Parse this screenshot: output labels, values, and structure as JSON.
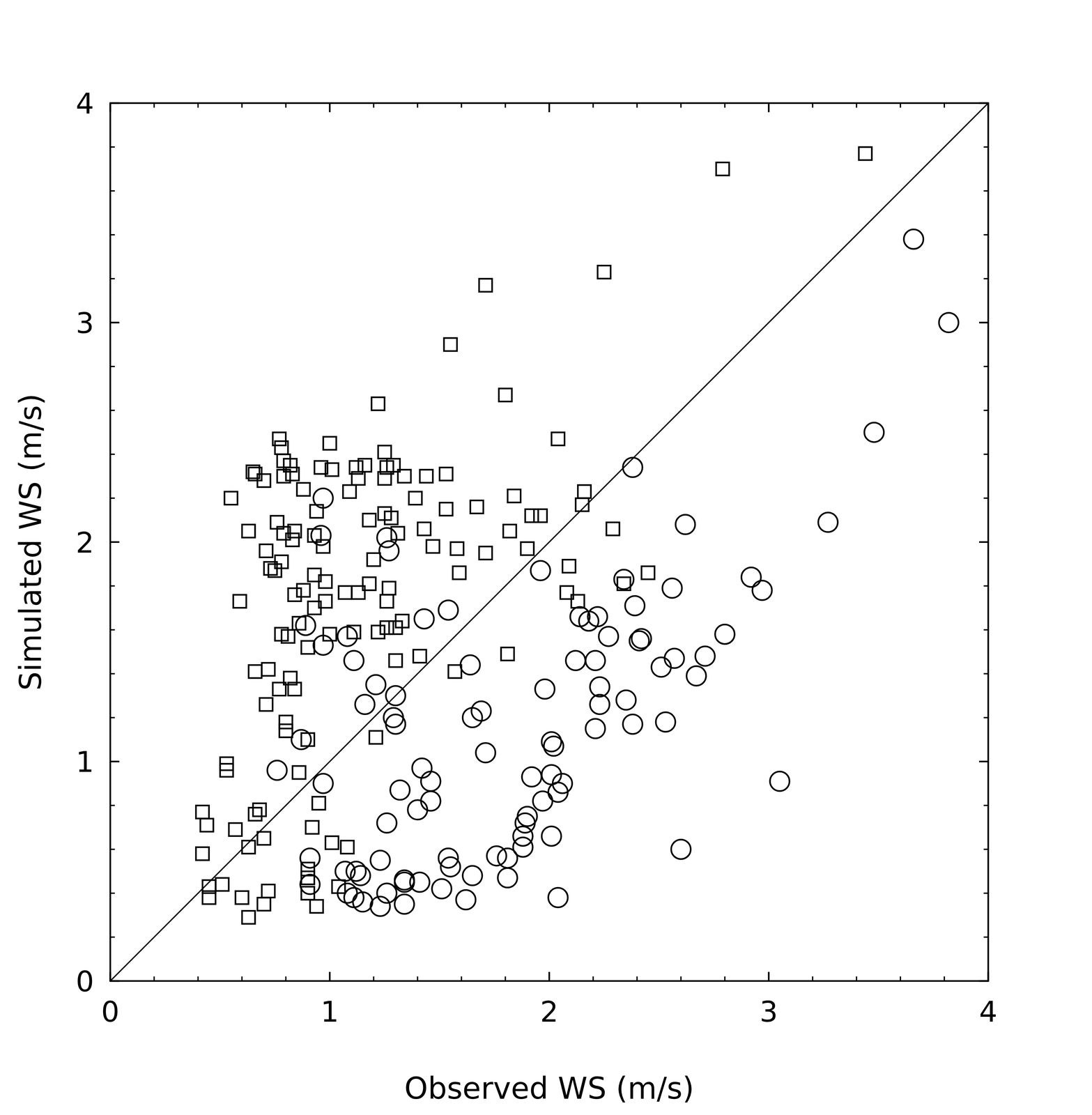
{
  "chart_data": {
    "type": "scatter",
    "x_label": "Observed WS (m/s)",
    "y_label": "Simulated WS (m/s)",
    "xlim": [
      0,
      4
    ],
    "ylim": [
      0,
      4
    ],
    "xticks": [
      0,
      1,
      2,
      3,
      4
    ],
    "yticks": [
      0,
      1,
      2,
      3,
      4
    ],
    "grid": false,
    "series": [
      {
        "marker": "square",
        "color": "#000000",
        "x": [
          3.44,
          2.79,
          2.25,
          1.71,
          1.55,
          1.8,
          1.22,
          2.04,
          0.77,
          1.0,
          0.78,
          1.25,
          0.79,
          0.82,
          0.96,
          1.01,
          1.12,
          1.16,
          1.26,
          1.29,
          0.65,
          0.66,
          0.7,
          0.79,
          0.83,
          1.13,
          1.25,
          1.34,
          1.44,
          1.53,
          0.55,
          0.88,
          1.09,
          1.39,
          1.84,
          2.16,
          2.15,
          1.67,
          1.53,
          0.94,
          1.25,
          1.28,
          1.92,
          1.96,
          2.29,
          0.76,
          1.18,
          0.63,
          1.43,
          1.82,
          0.79,
          0.84,
          0.93,
          1.31,
          0.83,
          0.97,
          1.47,
          1.58,
          1.9,
          0.71,
          1.2,
          1.71,
          0.78,
          0.73,
          0.75,
          2.09,
          1.59,
          2.45,
          0.93,
          0.98,
          1.18,
          1.27,
          2.34,
          0.88,
          0.84,
          1.07,
          1.13,
          2.08,
          0.59,
          0.98,
          1.26,
          2.13,
          0.93,
          1.33,
          0.86,
          1.26,
          1.3,
          0.78,
          0.81,
          1.0,
          1.11,
          1.22,
          0.9,
          1.3,
          1.41,
          1.81,
          0.66,
          0.72,
          1.57,
          0.82,
          0.77,
          0.84,
          0.71,
          0.8,
          0.8,
          1.21,
          0.9,
          0.53,
          0.53,
          0.86,
          0.95,
          0.42,
          0.68,
          0.66,
          0.44,
          0.57,
          0.92,
          0.7,
          1.01,
          1.08,
          0.63,
          0.42,
          0.9,
          0.9,
          0.51,
          0.45,
          1.04,
          0.72,
          0.45,
          0.6,
          0.7,
          0.9,
          0.94,
          0.63
        ],
        "values": [
          3.77,
          3.7,
          3.23,
          3.17,
          2.9,
          2.67,
          2.63,
          2.47,
          2.47,
          2.45,
          2.43,
          2.41,
          2.37,
          2.35,
          2.34,
          2.33,
          2.34,
          2.35,
          2.34,
          2.35,
          2.32,
          2.31,
          2.28,
          2.3,
          2.31,
          2.29,
          2.29,
          2.3,
          2.3,
          2.31,
          2.2,
          2.24,
          2.23,
          2.2,
          2.21,
          2.23,
          2.17,
          2.16,
          2.15,
          2.14,
          2.13,
          2.11,
          2.12,
          2.12,
          2.06,
          2.09,
          2.1,
          2.05,
          2.06,
          2.05,
          2.04,
          2.05,
          2.03,
          2.04,
          2.01,
          1.98,
          1.98,
          1.97,
          1.97,
          1.96,
          1.92,
          1.95,
          1.91,
          1.88,
          1.87,
          1.89,
          1.86,
          1.86,
          1.85,
          1.82,
          1.81,
          1.79,
          1.81,
          1.78,
          1.76,
          1.77,
          1.77,
          1.77,
          1.73,
          1.73,
          1.73,
          1.73,
          1.7,
          1.64,
          1.63,
          1.61,
          1.61,
          1.58,
          1.57,
          1.58,
          1.59,
          1.59,
          1.52,
          1.46,
          1.48,
          1.49,
          1.41,
          1.42,
          1.41,
          1.38,
          1.33,
          1.33,
          1.26,
          1.18,
          1.14,
          1.11,
          1.1,
          0.99,
          0.96,
          0.95,
          0.81,
          0.77,
          0.78,
          0.76,
          0.71,
          0.69,
          0.7,
          0.65,
          0.63,
          0.61,
          0.61,
          0.58,
          0.51,
          0.47,
          0.44,
          0.43,
          0.43,
          0.41,
          0.38,
          0.38,
          0.35,
          0.4,
          0.34,
          0.29
        ]
      },
      {
        "marker": "circle",
        "color": "#000000",
        "x": [
          3.66,
          3.82,
          3.48,
          2.38,
          0.97,
          2.62,
          3.27,
          0.96,
          1.26,
          1.27,
          1.96,
          2.92,
          2.97,
          2.56,
          2.34,
          2.39,
          1.54,
          2.14,
          2.22,
          2.18,
          1.43,
          0.89,
          2.8,
          2.27,
          2.42,
          2.41,
          1.08,
          0.97,
          2.71,
          2.57,
          2.51,
          1.11,
          2.12,
          2.21,
          1.64,
          2.67,
          1.21,
          2.23,
          1.98,
          1.3,
          2.35,
          1.16,
          2.23,
          1.69,
          1.65,
          1.29,
          1.3,
          2.38,
          2.53,
          2.21,
          0.87,
          2.01,
          2.02,
          1.71,
          0.76,
          1.42,
          2.01,
          1.92,
          0.97,
          1.46,
          2.06,
          3.05,
          1.32,
          2.04,
          1.46,
          1.97,
          1.4,
          1.9,
          1.89,
          1.26,
          1.88,
          2.01,
          1.88,
          2.6,
          1.76,
          1.81,
          0.91,
          1.54,
          1.23,
          1.55,
          1.07,
          1.12,
          1.14,
          1.65,
          1.81,
          1.34,
          1.41,
          1.34,
          0.91,
          1.51,
          1.08,
          1.26,
          1.11,
          2.04,
          1.15,
          1.62,
          1.34,
          1.23
        ],
        "values": [
          3.38,
          3.0,
          2.5,
          2.34,
          2.2,
          2.08,
          2.09,
          2.03,
          2.02,
          1.96,
          1.87,
          1.84,
          1.78,
          1.79,
          1.83,
          1.71,
          1.69,
          1.66,
          1.66,
          1.64,
          1.65,
          1.62,
          1.58,
          1.57,
          1.56,
          1.55,
          1.57,
          1.53,
          1.48,
          1.47,
          1.43,
          1.46,
          1.46,
          1.46,
          1.44,
          1.39,
          1.35,
          1.34,
          1.33,
          1.3,
          1.28,
          1.26,
          1.26,
          1.23,
          1.2,
          1.2,
          1.17,
          1.17,
          1.18,
          1.15,
          1.1,
          1.09,
          1.07,
          1.04,
          0.96,
          0.97,
          0.94,
          0.93,
          0.9,
          0.91,
          0.9,
          0.91,
          0.87,
          0.86,
          0.82,
          0.82,
          0.78,
          0.75,
          0.72,
          0.72,
          0.66,
          0.66,
          0.61,
          0.6,
          0.57,
          0.56,
          0.56,
          0.56,
          0.55,
          0.52,
          0.5,
          0.5,
          0.48,
          0.48,
          0.47,
          0.46,
          0.45,
          0.45,
          0.44,
          0.42,
          0.4,
          0.4,
          0.38,
          0.38,
          0.36,
          0.37,
          0.35,
          0.34
        ]
      },
      {
        "type": "line",
        "line_style": "solid",
        "color": "#000000",
        "x": [
          0,
          4
        ],
        "values": [
          0,
          4
        ]
      }
    ]
  }
}
